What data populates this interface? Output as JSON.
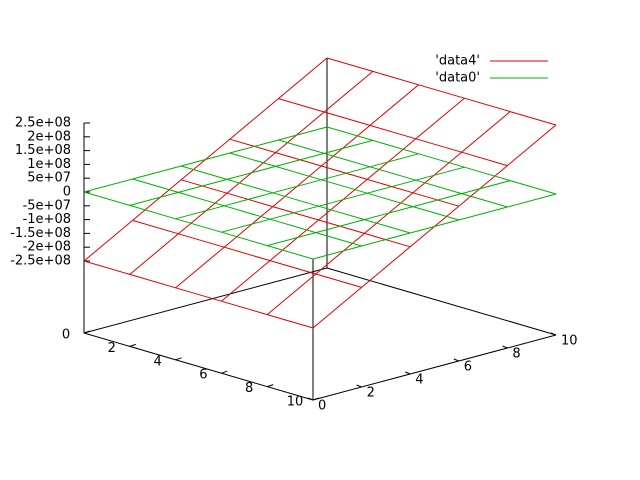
{
  "chart_data": {
    "type": "surface",
    "x": [
      0,
      2,
      4,
      6,
      8,
      10
    ],
    "y": [
      0,
      2,
      4,
      6,
      8,
      10
    ],
    "xlim": [
      0,
      10
    ],
    "ylim": [
      0,
      10
    ],
    "zlim": [
      -250000000,
      250000000
    ],
    "xticks": [
      0,
      2,
      4,
      6,
      8,
      10
    ],
    "yticks": [
      0,
      2,
      4,
      6,
      8,
      10
    ],
    "zticks": [
      {
        "value": -250000000,
        "label": "-2.5e+08"
      },
      {
        "value": -200000000,
        "label": "-2e+08"
      },
      {
        "value": -150000000,
        "label": "-1.5e+08"
      },
      {
        "value": -100000000,
        "label": "-1e+08"
      },
      {
        "value": -50000000,
        "label": "-5e+07"
      },
      0,
      {
        "value": 50000000,
        "label": "5e+07"
      },
      {
        "value": 100000000,
        "label": "1e+08"
      },
      {
        "value": 150000000,
        "label": "1.5e+08"
      },
      {
        "value": 200000000,
        "label": "2e+08"
      },
      {
        "value": 250000000,
        "label": "2.5e+08"
      }
    ],
    "series": [
      {
        "name": "'data4'",
        "color": "#e00000",
        "values": [
          [
            -250000000,
            -150000000,
            -50000000,
            50000000,
            150000000,
            250000000
          ],
          [
            -250000000,
            -150000000,
            -50000000,
            50000000,
            150000000,
            250000000
          ],
          [
            -250000000,
            -150000000,
            -50000000,
            50000000,
            150000000,
            250000000
          ],
          [
            -250000000,
            -150000000,
            -50000000,
            50000000,
            150000000,
            250000000
          ],
          [
            -250000000,
            -150000000,
            -50000000,
            50000000,
            150000000,
            250000000
          ],
          [
            -250000000,
            -150000000,
            -50000000,
            50000000,
            150000000,
            250000000
          ]
        ]
      },
      {
        "name": "'data0'",
        "color": "#00b000",
        "values": [
          [
            0,
            0,
            0,
            0,
            0,
            0
          ],
          [
            0,
            0,
            0,
            0,
            0,
            0
          ],
          [
            0,
            0,
            0,
            0,
            0,
            0
          ],
          [
            0,
            0,
            0,
            0,
            0,
            0
          ],
          [
            0,
            0,
            0,
            0,
            0,
            0
          ],
          [
            0,
            0,
            0,
            0,
            0,
            0
          ]
        ]
      }
    ]
  }
}
